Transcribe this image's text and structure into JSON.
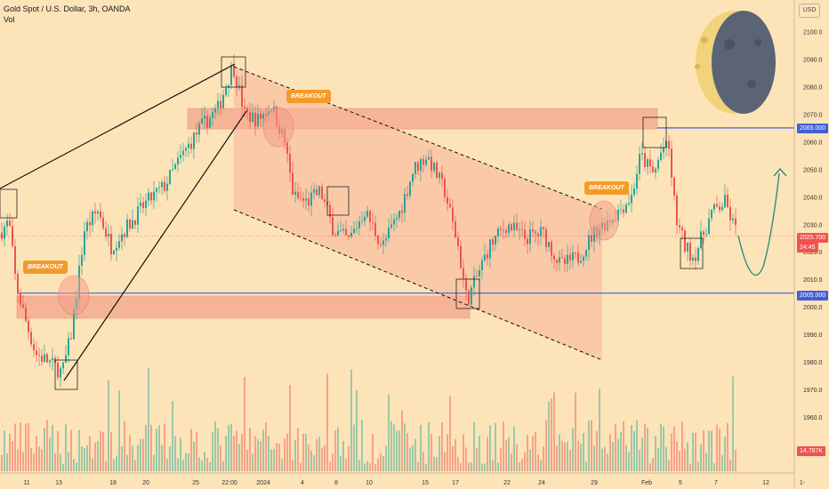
{
  "header": {
    "title": "Gold Spot / U.S. Dollar, 3h, OANDA",
    "volume_label": "Vol",
    "currency": "USD"
  },
  "price_tags": {
    "level_high": "2065.000",
    "level_low": "2005.000",
    "last_price": "2025.700",
    "countdown": "24:45",
    "volume": "14.787K"
  },
  "annotations": {
    "breakout_1": "BREAKOUT",
    "breakout_2": "BREAKOUT",
    "breakout_3": "BREAKOUT"
  },
  "colors": {
    "background": "#fde4b8",
    "up": "#26a69a",
    "down": "#ef5350",
    "zone": "#f4a089",
    "level_line": "#3f5fd8",
    "badge": "#f39b2a",
    "moon_dark": "#5a6475",
    "moon_light": "#f0d37a"
  },
  "chart_data": {
    "type": "candlestick",
    "symbol": "Gold Spot / U.S. Dollar",
    "timeframe": "3h",
    "ylim": [
      1950,
      2105
    ],
    "y_ticks": [
      1960,
      1970,
      1980,
      1990,
      2000,
      2010,
      2020,
      2030,
      2040,
      2050,
      2060,
      2070,
      2080,
      2090,
      2100
    ],
    "x_ticks": [
      "11",
      "13",
      "18",
      "20",
      "25",
      "22:00",
      "2024",
      "4",
      "8",
      "10",
      "15",
      "17",
      "22",
      "24",
      "29",
      "Feb",
      "5",
      "7",
      "12",
      "1-"
    ],
    "key_levels": [
      2065,
      2005
    ],
    "last_price": 2025.7,
    "swing_points": [
      {
        "label": "13",
        "price": 1975
      },
      {
        "label": "22:00",
        "price": 2088
      },
      {
        "label": "17",
        "price": 2002
      },
      {
        "label": "Feb",
        "price": 2062
      },
      {
        "label": "5",
        "price": 2017
      }
    ]
  }
}
